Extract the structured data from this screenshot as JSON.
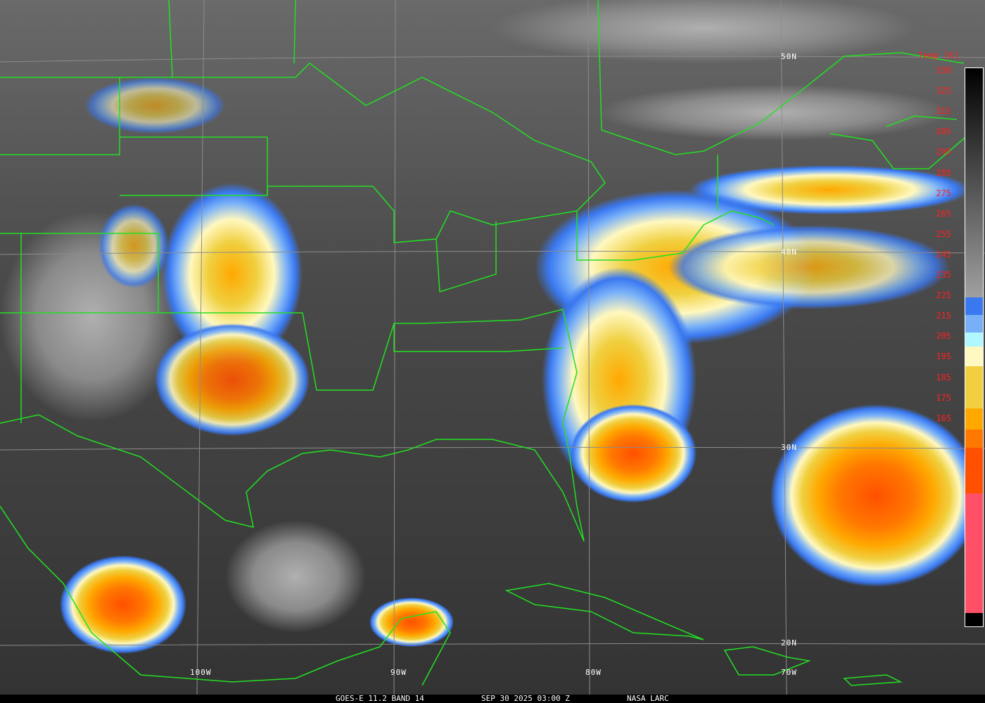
{
  "caption": {
    "satellite": "GOES-E 11.2 BAND 14",
    "datetime": "SEP 30 2025 03:00 Z",
    "credit": "NASA LARC"
  },
  "grid_labels": {
    "lat": [
      "50N",
      "40N",
      "30N",
      "20N"
    ],
    "lon": [
      "100W",
      "90W",
      "80W",
      "70W"
    ]
  },
  "scale": {
    "title": "Temp [K]",
    "ticks": [
      "330",
      "325",
      "315",
      "305",
      "295",
      "285",
      "275",
      "265",
      "255",
      "245",
      "235",
      "225",
      "215",
      "205",
      "195",
      "185",
      "175",
      "165"
    ],
    "colors": {
      "blue": "#3a78f0",
      "light_blue": "#78b0f8",
      "cyan": "#b0f8ff",
      "cream": "#fff8c0",
      "yellow": "#f0d040",
      "orange": "#ffa800",
      "dark_orange": "#ff7800",
      "red_orange": "#ff5000",
      "pink": "#ff5068"
    }
  },
  "border_color": "#22e022"
}
